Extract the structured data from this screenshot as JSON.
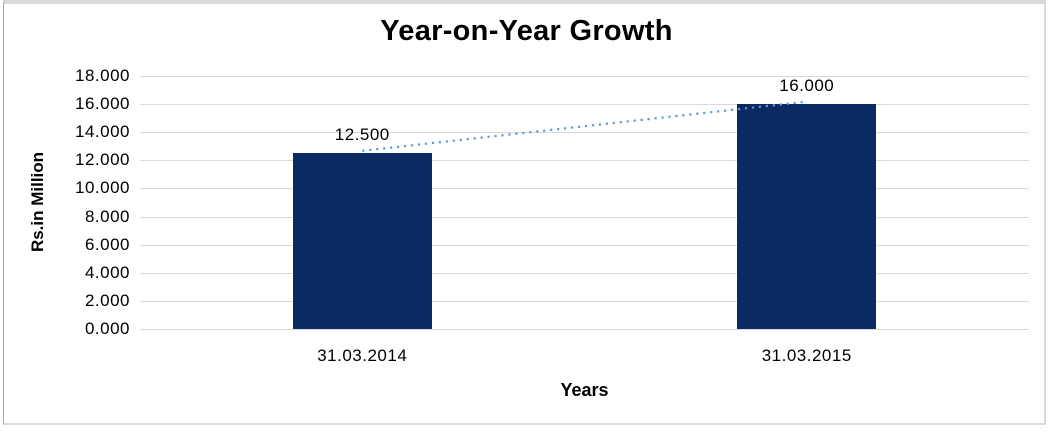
{
  "chart_data": {
    "type": "bar",
    "title": "Year-on-Year Growth",
    "xlabel": "Years",
    "ylabel": "Rs.in Million",
    "categories": [
      "31.03.2014",
      "31.03.2015"
    ],
    "values": [
      12.5,
      16.0
    ],
    "data_labels": [
      "12.500",
      "16.000"
    ],
    "ylim": [
      0,
      18
    ],
    "ytick_step": 2,
    "ytick_labels": [
      "18.000",
      "16.000",
      "14.000",
      "12.000",
      "10.000",
      "8.000",
      "6.000",
      "4.000",
      "2.000",
      "0.000"
    ],
    "grid": true,
    "legend": "none",
    "trendline": {
      "style": "dotted",
      "from": 12.5,
      "to": 16.0
    },
    "colors": {
      "bar": "#0b2a63",
      "trendline": "#5b9bd5",
      "gridline": "#d9d9d9",
      "text": "#000000",
      "frame_border": "#d9d9d9"
    }
  }
}
